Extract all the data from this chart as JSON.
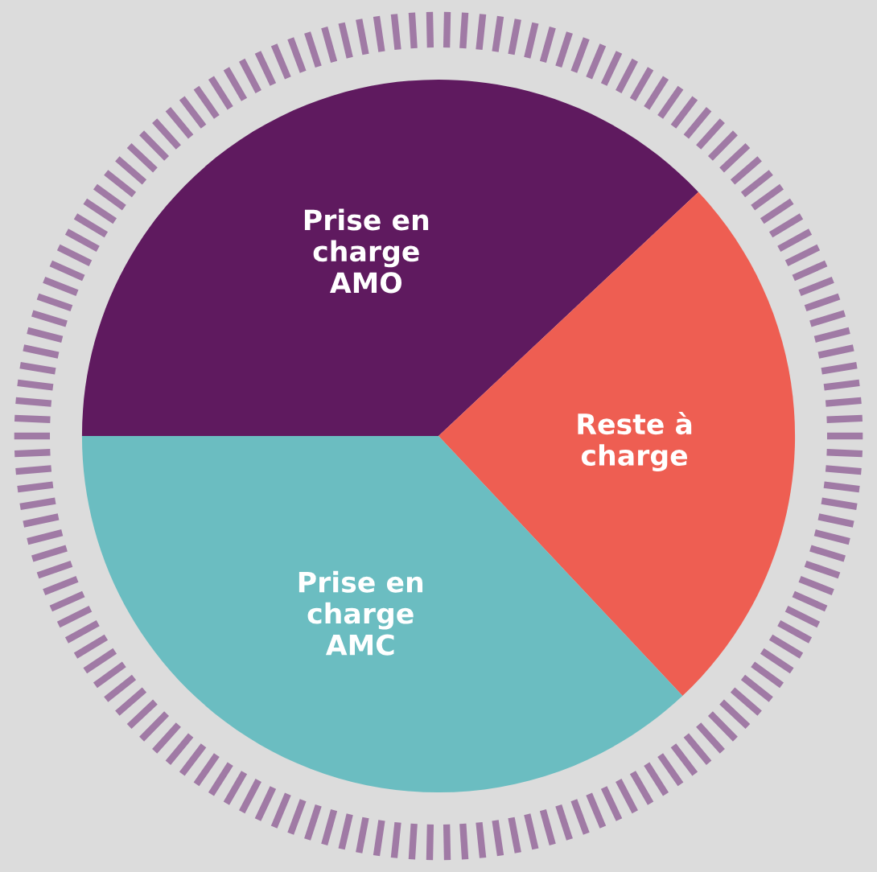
{
  "chart_data": {
    "type": "pie",
    "categories": [
      "Prise en\ncharge\nAMO",
      "Reste à\ncharge",
      "Prise en\ncharge\nAMC"
    ],
    "values": [
      38,
      25,
      37
    ],
    "colors": [
      "#5f1a5f",
      "#ee5e52",
      "#6bbdc1"
    ]
  }
}
